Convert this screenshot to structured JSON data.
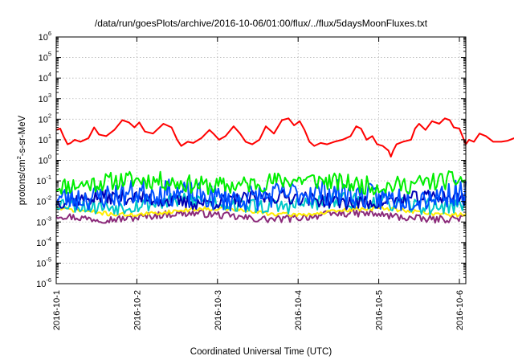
{
  "chart_data": {
    "type": "line",
    "title": "/data/run/goesPlots/archive/2016-10-06/01:00/flux/../flux/5daysMoonFluxes.txt",
    "xlabel": "Coordinated Universal Time (UTC)",
    "ylabel": {
      "prefix": "protons/cm",
      "superscript": "2",
      "suffix": "-s-sr-MeV"
    },
    "y_scale": "log",
    "ylim_exponent": [
      -6,
      6
    ],
    "y_tick_base": "10",
    "y_tick_exponents": [
      "-6",
      "-5",
      "-4",
      "-3",
      "-2",
      "-1",
      "0",
      "1",
      "2",
      "3",
      "4",
      "5",
      "6"
    ],
    "x_range": [
      "2016-10-01",
      "2016-10-06 01:00"
    ],
    "x_tick_labels": [
      "2016-10-1",
      "2016-10-2",
      "2016-10-3",
      "2016-10-4",
      "2016-10-5",
      "2016-10-6"
    ],
    "grid": true,
    "series": [
      {
        "color": "#ff0000",
        "values": [
          [
            0.0,
            30
          ],
          [
            0.05,
            35
          ],
          [
            0.09,
            15
          ],
          [
            0.14,
            6
          ],
          [
            0.18,
            7
          ],
          [
            0.23,
            10
          ],
          [
            0.3,
            8
          ],
          [
            0.4,
            12
          ],
          [
            0.47,
            40
          ],
          [
            0.53,
            18
          ],
          [
            0.62,
            15
          ],
          [
            0.72,
            30
          ],
          [
            0.82,
            90
          ],
          [
            0.9,
            70
          ],
          [
            0.97,
            40
          ],
          [
            1.03,
            70
          ],
          [
            1.1,
            25
          ],
          [
            1.2,
            20
          ],
          [
            1.33,
            60
          ],
          [
            1.43,
            40
          ],
          [
            1.5,
            10
          ],
          [
            1.55,
            5
          ],
          [
            1.63,
            8
          ],
          [
            1.7,
            7
          ],
          [
            1.8,
            12
          ],
          [
            1.9,
            30
          ],
          [
            1.96,
            18
          ],
          [
            2.02,
            10
          ],
          [
            2.1,
            15
          ],
          [
            2.2,
            45
          ],
          [
            2.28,
            20
          ],
          [
            2.35,
            8
          ],
          [
            2.43,
            6
          ],
          [
            2.52,
            10
          ],
          [
            2.6,
            45
          ],
          [
            2.7,
            20
          ],
          [
            2.8,
            90
          ],
          [
            2.88,
            110
          ],
          [
            2.95,
            50
          ],
          [
            3.02,
            80
          ],
          [
            3.08,
            30
          ],
          [
            3.14,
            8
          ],
          [
            3.2,
            5
          ],
          [
            3.28,
            7
          ],
          [
            3.36,
            6
          ],
          [
            3.45,
            8
          ],
          [
            3.55,
            10
          ],
          [
            3.65,
            15
          ],
          [
            3.72,
            45
          ],
          [
            3.78,
            35
          ],
          [
            3.85,
            10
          ],
          [
            3.92,
            15
          ],
          [
            3.98,
            6
          ],
          [
            4.05,
            5
          ],
          [
            4.12,
            3
          ],
          [
            4.15,
            1.5
          ],
          [
            4.18,
            3
          ],
          [
            4.22,
            6
          ],
          [
            4.3,
            8
          ],
          [
            4.4,
            10
          ],
          [
            4.45,
            35
          ],
          [
            4.5,
            60
          ],
          [
            4.58,
            30
          ],
          [
            4.66,
            80
          ],
          [
            4.75,
            60
          ],
          [
            4.82,
            110
          ],
          [
            4.88,
            90
          ],
          [
            4.93,
            40
          ],
          [
            5.0,
            35
          ],
          [
            5.08,
            6
          ],
          [
            5.12,
            10
          ],
          [
            5.18,
            8
          ],
          [
            5.25,
            20
          ],
          [
            5.33,
            15
          ],
          [
            5.42,
            8
          ],
          [
            5.52,
            8
          ],
          [
            5.6,
            9
          ],
          [
            5.68,
            12
          ],
          [
            5.76,
            15
          ],
          [
            5.84,
            12
          ],
          [
            5.9,
            25
          ],
          [
            5.96,
            30
          ],
          [
            6.0,
            35
          ],
          [
            6.04,
            22
          ]
        ]
      },
      {
        "color": "#00ee00",
        "base": 0.08,
        "jitter": 0.45,
        "seed": 11
      },
      {
        "color": "#0050ff",
        "base": 0.02,
        "jitter": 0.65,
        "seed": 23
      },
      {
        "color": "#0000b4",
        "base": 0.012,
        "jitter": 0.35,
        "seed": 37
      },
      {
        "color": "#00c8c8",
        "base": 0.008,
        "jitter": 0.4,
        "seed": 53
      },
      {
        "color": "#ffee00",
        "base": 0.0032,
        "jitter": 0.1,
        "seed": 71
      },
      {
        "color": "#8b2a7a",
        "base": 0.0019,
        "jitter": 0.18,
        "seed": 97
      }
    ]
  }
}
